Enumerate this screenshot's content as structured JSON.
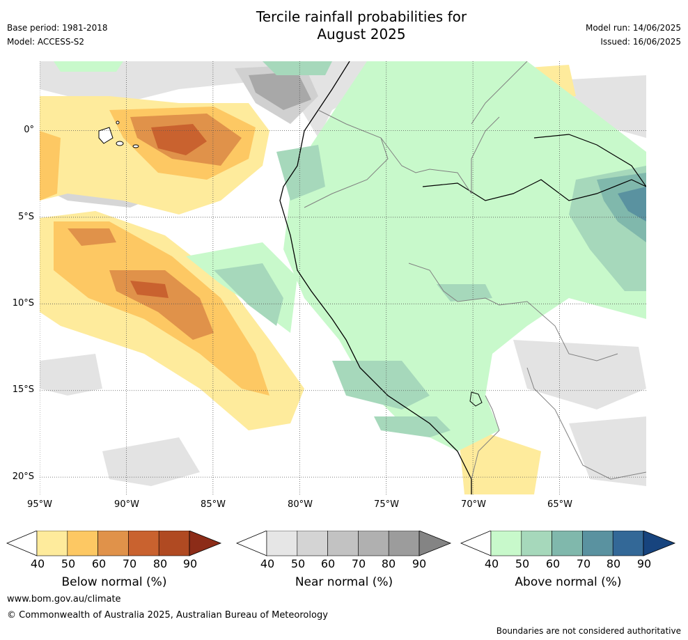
{
  "title_line1": "Tercile rainfall probabilities for",
  "title_line2": "August 2025",
  "meta": {
    "base_period": "Base period: 1981-2018",
    "model": "Model: ACCESS-S2",
    "model_run": "Model run: 14/06/2025",
    "issued": "Issued: 16/06/2025"
  },
  "map": {
    "lat_labels": [
      "0°",
      "5°S",
      "10°S",
      "15°S",
      "20°S"
    ],
    "lat_values": [
      0,
      -5,
      -10,
      -15,
      -20
    ],
    "lon_labels": [
      "95°W",
      "90°W",
      "85°W",
      "80°W",
      "75°W",
      "70°W",
      "65°W"
    ],
    "lon_values": [
      -95,
      -90,
      -85,
      -80,
      -75,
      -70,
      -65
    ],
    "extent": {
      "lon_min": -95,
      "lon_max": -60,
      "lat_min": -21,
      "lat_max": 4
    }
  },
  "legends": [
    {
      "caption": "Below normal (%)",
      "ticks": [
        "40",
        "50",
        "60",
        "70",
        "80",
        "90"
      ],
      "colors": [
        "#ffffff",
        "#feeb9c",
        "#fdc863",
        "#e0924a",
        "#c9622f",
        "#b04a22",
        "#8c2c18"
      ]
    },
    {
      "caption": "Near normal (%)",
      "ticks": [
        "40",
        "50",
        "60",
        "70",
        "80",
        "90"
      ],
      "colors": [
        "#ffffff",
        "#e6e6e6",
        "#d4d4d4",
        "#c2c2c2",
        "#b0b0b0",
        "#9c9c9c",
        "#848484"
      ]
    },
    {
      "caption": "Above normal (%)",
      "ticks": [
        "40",
        "50",
        "60",
        "70",
        "80",
        "90"
      ],
      "colors": [
        "#ffffff",
        "#c8f9cb",
        "#a6d8bb",
        "#80b8ac",
        "#5a92a0",
        "#336897",
        "#17447e"
      ]
    }
  ],
  "footer": {
    "website": "www.bom.gov.au/climate",
    "copyright": "© Commonwealth of Australia 2025, Australian Bureau of Meteorology",
    "disclaimer": "Boundaries are not considered authoritative"
  }
}
